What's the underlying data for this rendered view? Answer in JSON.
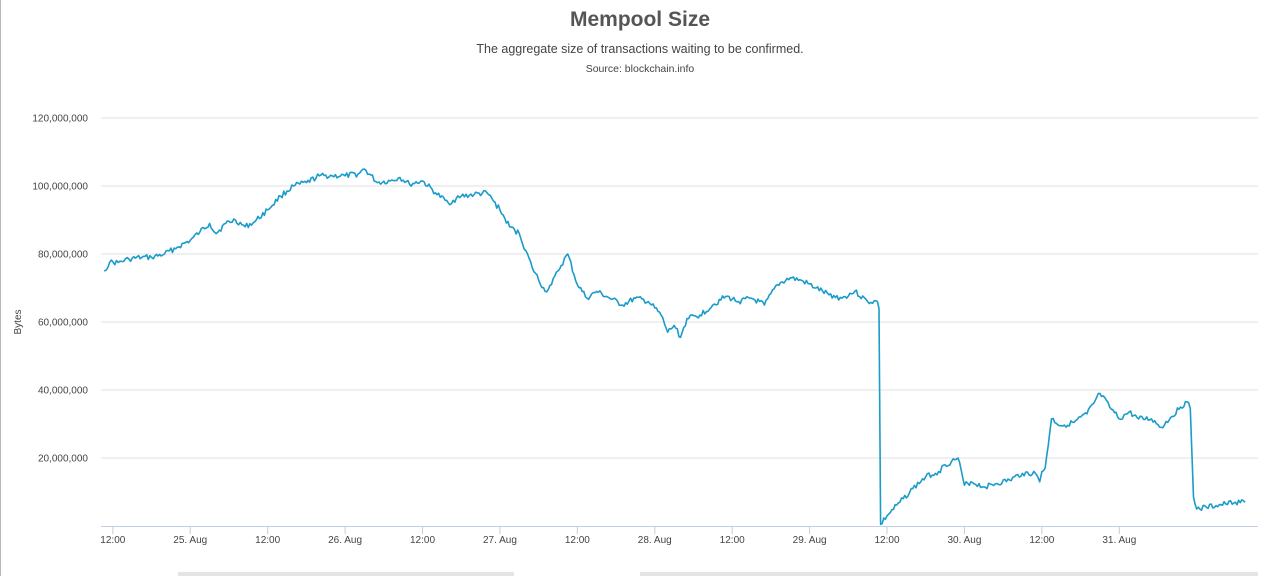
{
  "title": "Mempool Size",
  "subtitle": "The aggregate size of transactions waiting to be confirmed.",
  "source": "Source: blockchain.info",
  "chart_data": {
    "type": "line",
    "ylabel": "Bytes",
    "ylim": [
      0,
      120000000
    ],
    "yticks": [
      20000000,
      40000000,
      60000000,
      80000000,
      100000000,
      120000000
    ],
    "ytick_labels": [
      "20,000,000",
      "40,000,000",
      "60,000,000",
      "80,000,000",
      "100,000,000",
      "120,000,000"
    ],
    "xlim": [
      "2017-08-24T10:10",
      "2017-08-31T21:30"
    ],
    "xticks": [
      {
        "t": "2017-08-24T12:00",
        "label": "12:00"
      },
      {
        "t": "2017-08-25T00:00",
        "label": "25. Aug"
      },
      {
        "t": "2017-08-25T12:00",
        "label": "12:00"
      },
      {
        "t": "2017-08-26T00:00",
        "label": "26. Aug"
      },
      {
        "t": "2017-08-26T12:00",
        "label": "12:00"
      },
      {
        "t": "2017-08-27T00:00",
        "label": "27. Aug"
      },
      {
        "t": "2017-08-27T12:00",
        "label": "12:00"
      },
      {
        "t": "2017-08-28T00:00",
        "label": "28. Aug"
      },
      {
        "t": "2017-08-28T12:00",
        "label": "12:00"
      },
      {
        "t": "2017-08-29T00:00",
        "label": "29. Aug"
      },
      {
        "t": "2017-08-29T12:00",
        "label": "12:00"
      },
      {
        "t": "2017-08-30T00:00",
        "label": "30. Aug"
      },
      {
        "t": "2017-08-30T12:00",
        "label": "12:00"
      },
      {
        "t": "2017-08-31T00:00",
        "label": "31. Aug"
      }
    ],
    "grid": true,
    "legend": "none",
    "color": "#1a9bc9",
    "series": [
      {
        "x": [
          "2017-08-24T10:40",
          "2017-08-24T11:30",
          "2017-08-24T12:50",
          "2017-08-24T14:30",
          "2017-08-24T16:30",
          "2017-08-24T18:00",
          "2017-08-24T20:00",
          "2017-08-24T22:00",
          "2017-08-25T00:00",
          "2017-08-25T01:30",
          "2017-08-25T03:00",
          "2017-08-25T04:00",
          "2017-08-25T05:30",
          "2017-08-25T07:00",
          "2017-08-25T08:30",
          "2017-08-25T10:00",
          "2017-08-25T12:00",
          "2017-08-25T14:00",
          "2017-08-25T16:00",
          "2017-08-25T18:00",
          "2017-08-25T20:00",
          "2017-08-25T22:00",
          "2017-08-26T00:00",
          "2017-08-26T02:00",
          "2017-08-26T03:00",
          "2017-08-26T05:00",
          "2017-08-26T07:00",
          "2017-08-26T08:30",
          "2017-08-26T10:00",
          "2017-08-26T12:00",
          "2017-08-26T14:00",
          "2017-08-26T16:00",
          "2017-08-26T18:00",
          "2017-08-26T20:00",
          "2017-08-26T22:00",
          "2017-08-27T00:00",
          "2017-08-27T01:30",
          "2017-08-27T03:00",
          "2017-08-27T05:00",
          "2017-08-27T07:00",
          "2017-08-27T08:00",
          "2017-08-27T09:00",
          "2017-08-27T10:30",
          "2017-08-27T12:00",
          "2017-08-27T13:30",
          "2017-08-27T15:00",
          "2017-08-27T17:00",
          "2017-08-27T19:00",
          "2017-08-27T21:00",
          "2017-08-27T23:00",
          "2017-08-28T01:00",
          "2017-08-28T02:00",
          "2017-08-28T03:00",
          "2017-08-28T04:00",
          "2017-08-28T05:00",
          "2017-08-28T07:00",
          "2017-08-28T09:00",
          "2017-08-28T11:00",
          "2017-08-28T13:00",
          "2017-08-28T15:00",
          "2017-08-28T17:00",
          "2017-08-28T19:00",
          "2017-08-28T21:00",
          "2017-08-28T23:00",
          "2017-08-29T01:00",
          "2017-08-29T03:00",
          "2017-08-29T05:00",
          "2017-08-29T07:00",
          "2017-08-29T09:00",
          "2017-08-29T10:30",
          "2017-08-29T10:45",
          "2017-08-29T11:00",
          "2017-08-29T12:00",
          "2017-08-29T14:00",
          "2017-08-29T16:00",
          "2017-08-29T18:00",
          "2017-08-29T20:00",
          "2017-08-29T21:00",
          "2017-08-29T22:00",
          "2017-08-29T23:00",
          "2017-08-30T00:00",
          "2017-08-30T01:00",
          "2017-08-30T03:00",
          "2017-08-30T05:00",
          "2017-08-30T07:00",
          "2017-08-30T09:00",
          "2017-08-30T11:00",
          "2017-08-30T11:40",
          "2017-08-30T12:00",
          "2017-08-30T12:30",
          "2017-08-30T13:30",
          "2017-08-30T15:00",
          "2017-08-30T17:00",
          "2017-08-30T19:00",
          "2017-08-30T20:00",
          "2017-08-30T21:00",
          "2017-08-30T22:30",
          "2017-08-31T00:00",
          "2017-08-31T01:30",
          "2017-08-31T03:00",
          "2017-08-31T05:00",
          "2017-08-31T06:30",
          "2017-08-31T08:00",
          "2017-08-31T09:30",
          "2017-08-31T10:30",
          "2017-08-31T11:00",
          "2017-08-31T11:30",
          "2017-08-31T12:00",
          "2017-08-31T13:30",
          "2017-08-31T15:00",
          "2017-08-31T16:30",
          "2017-08-31T18:00",
          "2017-08-31T19:30"
        ],
        "y": [
          75000000,
          77500000,
          77500000,
          78500000,
          79000000,
          79000000,
          80000000,
          82000000,
          84000000,
          86500000,
          89000000,
          86000000,
          89000000,
          90000000,
          88000000,
          89500000,
          93000000,
          97000000,
          100000000,
          101000000,
          103000000,
          103000000,
          103000000,
          103500000,
          105000000,
          101000000,
          101500000,
          102500000,
          100500000,
          101500000,
          98000000,
          95000000,
          97000000,
          97500000,
          98000000,
          93000000,
          88000000,
          86000000,
          76000000,
          69000000,
          71000000,
          75000000,
          80000000,
          71000000,
          67000000,
          69000000,
          67000000,
          65000000,
          67000000,
          66000000,
          62000000,
          57000000,
          59000000,
          55500000,
          61000000,
          62000000,
          65000000,
          67500000,
          66000000,
          67000000,
          65000000,
          71000000,
          73000000,
          72000000,
          70000000,
          68000000,
          67000000,
          69000000,
          66000000,
          66000000,
          64000000,
          500000,
          3000000,
          7000000,
          11000000,
          14500000,
          16000000,
          18000000,
          19000000,
          20000000,
          12000000,
          13000000,
          11500000,
          12500000,
          13500000,
          15500000,
          15500000,
          13000000,
          16000000,
          17000000,
          31500000,
          29500000,
          30500000,
          33000000,
          36000000,
          39000000,
          35000000,
          31500000,
          33500000,
          31500000,
          31500000,
          29000000,
          32000000,
          35000000,
          36500000,
          34500000,
          8500000,
          5000000,
          5500000,
          6000000,
          6500000,
          7000000,
          7000000
        ]
      }
    ]
  }
}
